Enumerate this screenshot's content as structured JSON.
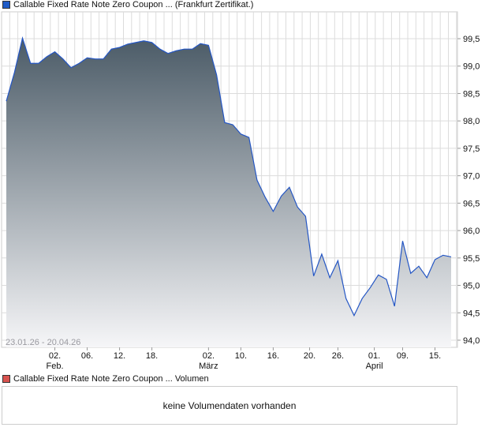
{
  "legend_main": "Callable Fixed Rate Note Zero Coupon ... (Frankfurt Zertifikat.)",
  "legend_volume": "Callable Fixed Rate Note Zero Coupon ... Volumen",
  "volume_message": "keine Volumendaten vorhanden",
  "colors": {
    "line": "#2456c4",
    "fill_top": "#4b5b67",
    "fill_bottom": "#f6f6f8",
    "volume_swatch": "#d9534f",
    "grid": "#dcdcdc"
  },
  "chart_data": {
    "type": "area",
    "title": "Callable Fixed Rate Note Zero Coupon ... (Frankfurt Zertifikat.)",
    "date_range": "23.01.26 - 20.04.26",
    "ylim": [
      93.9,
      100.0
    ],
    "y_ticks": [
      "94,0",
      "94,5",
      "95,0",
      "95,5",
      "96,0",
      "96,5",
      "97,0",
      "97,5",
      "98,0",
      "98,5",
      "99,0",
      "99,5"
    ],
    "y_tick_values": [
      94.0,
      94.5,
      95.0,
      95.5,
      96.0,
      96.5,
      97.0,
      97.5,
      98.0,
      98.5,
      99.0,
      99.5
    ],
    "x_ticks": [
      {
        "index": 6,
        "label": "02.",
        "sub": "Feb."
      },
      {
        "index": 10,
        "label": "06.",
        "sub": ""
      },
      {
        "index": 14,
        "label": "12.",
        "sub": ""
      },
      {
        "index": 18,
        "label": "18.",
        "sub": ""
      },
      {
        "index": 25,
        "label": "02.",
        "sub": "März"
      },
      {
        "index": 29,
        "label": "10.",
        "sub": ""
      },
      {
        "index": 33,
        "label": "16.",
        "sub": ""
      },
      {
        "index": 37.5,
        "label": "20.",
        "sub": ""
      },
      {
        "index": 41,
        "label": "26.",
        "sub": ""
      },
      {
        "index": 45.5,
        "label": "01.",
        "sub": "April"
      },
      {
        "index": 49,
        "label": "09.",
        "sub": ""
      },
      {
        "index": 53,
        "label": "15.",
        "sub": ""
      }
    ],
    "values": [
      98.36,
      98.88,
      99.51,
      99.05,
      99.05,
      99.17,
      99.26,
      99.13,
      98.97,
      99.05,
      99.15,
      99.13,
      99.13,
      99.31,
      99.34,
      99.4,
      99.43,
      99.46,
      99.43,
      99.31,
      99.23,
      99.28,
      99.31,
      99.31,
      99.41,
      99.38,
      98.84,
      97.97,
      97.93,
      97.76,
      97.7,
      96.92,
      96.61,
      96.35,
      96.63,
      96.79,
      96.43,
      96.26,
      95.17,
      95.57,
      95.14,
      95.45,
      94.76,
      94.45,
      94.76,
      94.96,
      95.19,
      95.11,
      94.62,
      95.81,
      95.22,
      95.35,
      95.14,
      95.47,
      95.55,
      95.52
    ]
  }
}
